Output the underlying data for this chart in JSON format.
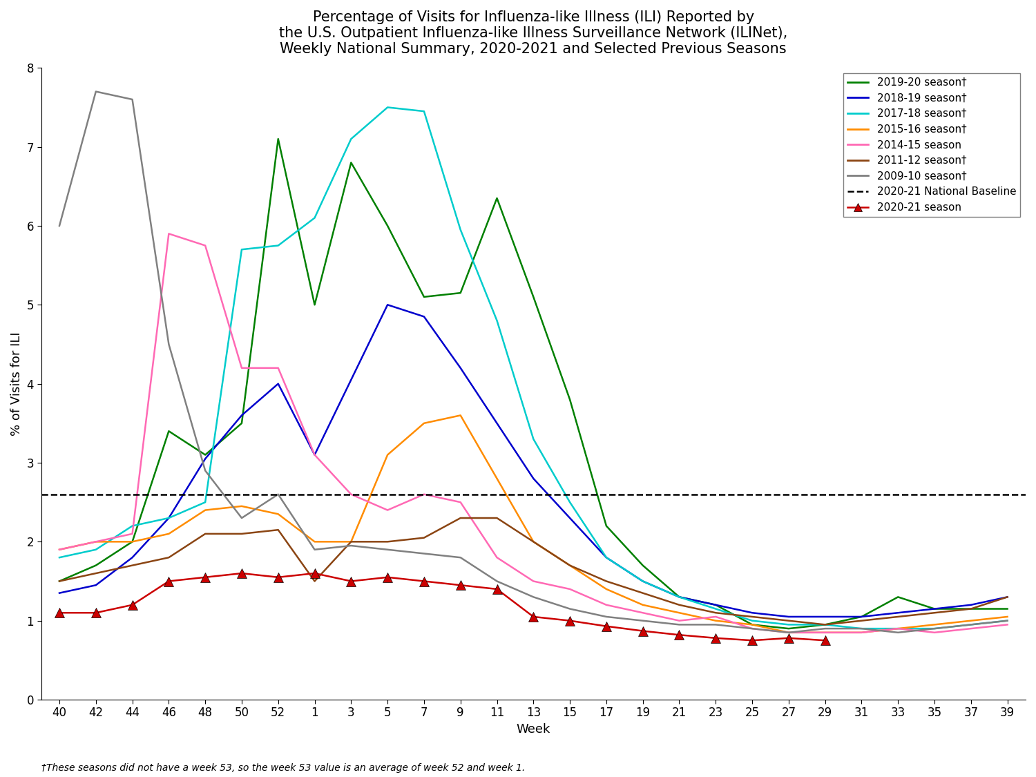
{
  "title": "Percentage of Visits for Influenza-like Illness (ILI) Reported by\nthe U.S. Outpatient Influenza-like Illness Surveillance Network (ILINet),\nWeekly National Summary, 2020-2021 and Selected Previous Seasons",
  "ylabel": "% of Visits for ILI",
  "xlabel": "Week",
  "footnote": "†These seasons did not have a week 53, so the week 53 value is an average of week 52 and week 1.",
  "baseline": 2.6,
  "ylim": [
    0,
    8
  ],
  "x_labels": [
    "40",
    "42",
    "44",
    "46",
    "48",
    "50",
    "52",
    "1",
    "3",
    "5",
    "7",
    "9",
    "11",
    "13",
    "15",
    "17",
    "19",
    "21",
    "23",
    "25",
    "27",
    "29",
    "31",
    "33",
    "35",
    "37",
    "39"
  ],
  "seasons": {
    "2019-20": {
      "color": "#008000",
      "label": "2019-20 season†",
      "values": [
        1.5,
        1.7,
        2.0,
        3.4,
        3.1,
        3.5,
        7.1,
        5.0,
        6.8,
        6.0,
        5.1,
        5.15,
        6.35,
        5.1,
        3.8,
        2.2,
        1.7,
        1.3,
        1.2,
        0.95,
        0.9,
        0.95,
        1.05,
        1.3,
        1.15,
        1.15,
        1.15
      ]
    },
    "2018-19": {
      "color": "#0000CD",
      "label": "2018-19 season†",
      "values": [
        1.35,
        1.45,
        1.8,
        2.3,
        3.05,
        3.6,
        4.0,
        3.1,
        4.05,
        5.0,
        4.85,
        4.2,
        3.5,
        2.8,
        2.3,
        1.8,
        1.5,
        1.3,
        1.2,
        1.1,
        1.05,
        1.05,
        1.05,
        1.1,
        1.15,
        1.2,
        1.3
      ]
    },
    "2017-18": {
      "color": "#00CCCC",
      "label": "2017-18 season†",
      "values": [
        1.8,
        1.9,
        2.2,
        2.3,
        2.5,
        5.7,
        5.75,
        6.1,
        7.1,
        7.5,
        7.45,
        5.95,
        4.8,
        3.3,
        2.5,
        1.8,
        1.5,
        1.3,
        1.15,
        1.0,
        0.95,
        0.95,
        0.9,
        0.9,
        0.9,
        0.95,
        1.0
      ]
    },
    "2015-16": {
      "color": "#FF8C00",
      "label": "2015-16 season†",
      "values": [
        1.9,
        2.0,
        2.0,
        2.1,
        2.4,
        2.45,
        2.35,
        2.0,
        2.0,
        3.1,
        3.5,
        3.6,
        2.8,
        2.0,
        1.7,
        1.4,
        1.2,
        1.1,
        1.0,
        0.95,
        0.85,
        0.85,
        0.85,
        0.9,
        0.95,
        1.0,
        1.05
      ]
    },
    "2014-15": {
      "color": "#FF69B4",
      "label": "2014-15 season",
      "values": [
        1.9,
        2.0,
        2.1,
        5.9,
        5.75,
        4.2,
        4.2,
        3.1,
        2.6,
        2.4,
        2.6,
        2.5,
        1.8,
        1.5,
        1.4,
        1.2,
        1.1,
        1.0,
        1.05,
        0.9,
        0.85,
        0.85,
        0.85,
        0.9,
        0.85,
        0.9,
        0.95
      ]
    },
    "2011-12": {
      "color": "#8B4513",
      "label": "2011-12 season†",
      "values": [
        1.5,
        1.6,
        1.7,
        1.8,
        2.1,
        2.1,
        2.15,
        1.5,
        2.0,
        2.0,
        2.05,
        2.3,
        2.3,
        2.0,
        1.7,
        1.5,
        1.35,
        1.2,
        1.1,
        1.05,
        1.0,
        0.95,
        1.0,
        1.05,
        1.1,
        1.15,
        1.3
      ]
    },
    "2009-10": {
      "color": "#808080",
      "label": "2009-10 season†",
      "values": [
        6.0,
        7.7,
        7.6,
        4.5,
        2.9,
        2.3,
        2.6,
        1.9,
        1.95,
        1.9,
        1.85,
        1.8,
        1.5,
        1.3,
        1.15,
        1.05,
        1.0,
        0.95,
        0.95,
        0.9,
        0.85,
        0.9,
        0.9,
        0.85,
        0.9,
        0.95,
        1.0
      ]
    }
  },
  "season_2021": {
    "color": "#CC0000",
    "line_color": "#CC0000",
    "label": "2020-21 season",
    "x_indices": [
      0,
      1,
      2,
      3,
      4,
      5,
      6,
      7,
      8,
      9,
      10,
      11,
      12,
      13,
      14,
      15,
      16,
      17,
      18,
      19,
      20,
      21
    ],
    "values": [
      1.1,
      1.1,
      1.2,
      1.5,
      1.55,
      1.6,
      1.55,
      1.6,
      1.5,
      1.55,
      1.5,
      1.45,
      1.4,
      1.05,
      1.0,
      0.93,
      0.87,
      0.82,
      0.78,
      0.75,
      0.78,
      0.75
    ]
  }
}
